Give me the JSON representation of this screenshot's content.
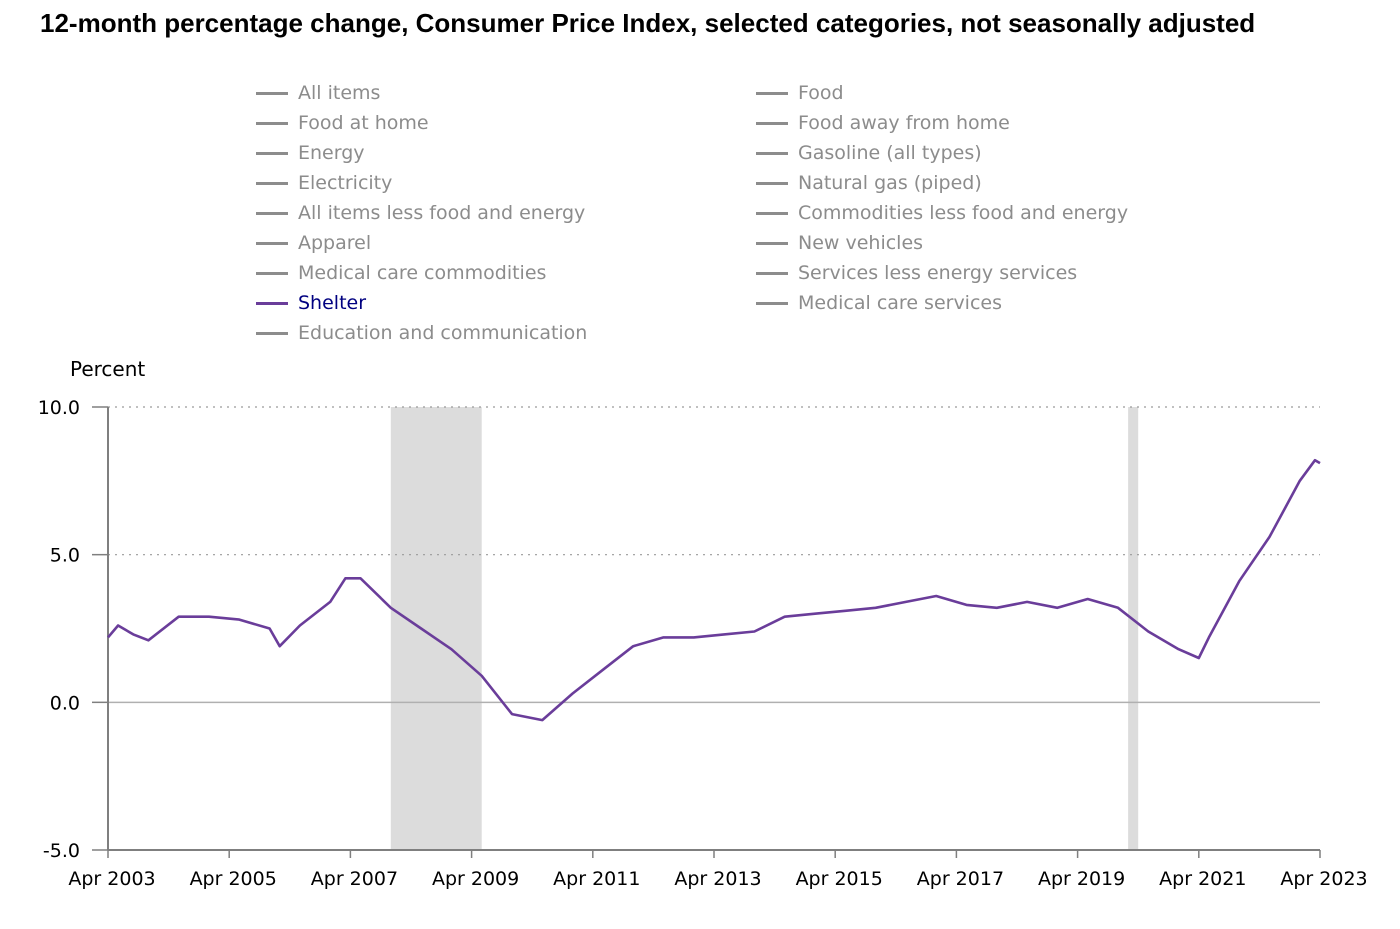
{
  "title": "12-month percentage change, Consumer Price Index, selected categories, not seasonally adjusted",
  "colors": {
    "active_series": "#6a3d9a",
    "inactive_series": "#8c8c8c",
    "recession_shading": "#dcdcdc",
    "grid": "#9a9a9a"
  },
  "legend": {
    "items": [
      {
        "label": "All items",
        "active": false
      },
      {
        "label": "Food at home",
        "active": false
      },
      {
        "label": "Energy",
        "active": false
      },
      {
        "label": "Electricity",
        "active": false
      },
      {
        "label": "All items less food and energy",
        "active": false
      },
      {
        "label": "Apparel",
        "active": false
      },
      {
        "label": "Medical care commodities",
        "active": false
      },
      {
        "label": "Shelter",
        "active": true
      },
      {
        "label": "Education and communication",
        "active": false
      },
      {
        "label": "Food",
        "active": false
      },
      {
        "label": "Food away from home",
        "active": false
      },
      {
        "label": "Gasoline (all types)",
        "active": false
      },
      {
        "label": "Natural gas (piped)",
        "active": false
      },
      {
        "label": "Commodities less food and energy",
        "active": false
      },
      {
        "label": "New vehicles",
        "active": false
      },
      {
        "label": "Services less energy services",
        "active": false
      },
      {
        "label": "Medical care services",
        "active": false
      }
    ]
  },
  "chart_data": {
    "type": "line",
    "title": "12-month percentage change, Consumer Price Index, selected categories, not seasonally adjusted",
    "ylabel": "Percent",
    "xlabel": "",
    "ylim": [
      -5.0,
      10.0
    ],
    "yticks": [
      "10.0",
      "5.0",
      "0.0",
      "-5.0"
    ],
    "xticks": [
      "Apr 2003",
      "Apr 2005",
      "Apr 2007",
      "Apr 2009",
      "Apr 2011",
      "Apr 2013",
      "Apr 2015",
      "Apr 2017",
      "Apr 2019",
      "Apr 2021",
      "Apr 2023"
    ],
    "x_start": "Apr 2003",
    "x_end": "Apr 2023",
    "grid": "dotted horizontal at 5.0 and 10.0, solid at 0.0",
    "recessions": [
      {
        "start": "Dec 2007",
        "end": "Jun 2009"
      },
      {
        "start": "Feb 2020",
        "end": "Apr 2020"
      }
    ],
    "series": [
      {
        "name": "Shelter",
        "x": [
          "Apr 2003",
          "Jun 2003",
          "Sep 2003",
          "Dec 2003",
          "Jun 2004",
          "Dec 2004",
          "Jun 2005",
          "Dec 2005",
          "Feb 2006",
          "Jun 2006",
          "Dec 2006",
          "Mar 2007",
          "Jun 2007",
          "Dec 2007",
          "Jun 2008",
          "Dec 2008",
          "Jun 2009",
          "Dec 2009",
          "Jun 2010",
          "Dec 2010",
          "Jun 2011",
          "Dec 2011",
          "Jun 2012",
          "Dec 2012",
          "Jun 2013",
          "Dec 2013",
          "Jun 2014",
          "Dec 2014",
          "Jun 2015",
          "Dec 2015",
          "Jun 2016",
          "Dec 2016",
          "Jun 2017",
          "Dec 2017",
          "Jun 2018",
          "Dec 2018",
          "Jun 2019",
          "Dec 2019",
          "Jun 2020",
          "Dec 2020",
          "Apr 2021",
          "Jun 2021",
          "Dec 2021",
          "Jun 2022",
          "Dec 2022",
          "Mar 2023",
          "Apr 2023"
        ],
        "values": [
          2.2,
          2.6,
          2.3,
          2.1,
          2.9,
          2.9,
          2.8,
          2.5,
          1.9,
          2.6,
          3.4,
          4.2,
          4.2,
          3.2,
          2.5,
          1.8,
          0.9,
          -0.4,
          -0.6,
          0.3,
          1.1,
          1.9,
          2.2,
          2.2,
          2.3,
          2.4,
          2.9,
          3.0,
          3.1,
          3.2,
          3.4,
          3.6,
          3.3,
          3.2,
          3.4,
          3.2,
          3.5,
          3.2,
          2.4,
          1.8,
          1.5,
          2.2,
          4.1,
          5.6,
          7.5,
          8.2,
          8.1
        ]
      }
    ]
  }
}
